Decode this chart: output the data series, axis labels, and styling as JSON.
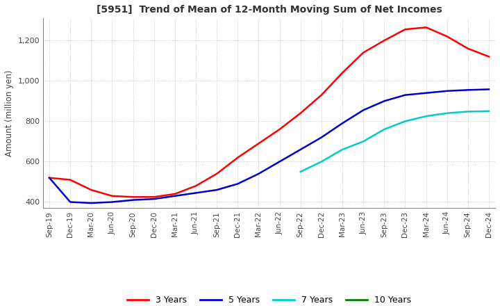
{
  "title": "[5951]  Trend of Mean of 12-Month Moving Sum of Net Incomes",
  "ylabel": "Amount (million yen)",
  "ylim": [
    370,
    1310
  ],
  "yticks": [
    400,
    600,
    800,
    1000,
    1200
  ],
  "background_color": "#ffffff",
  "grid_color": "#bbbbbb",
  "x_labels": [
    "Sep-19",
    "Dec-19",
    "Mar-20",
    "Jun-20",
    "Sep-20",
    "Dec-20",
    "Mar-21",
    "Jun-21",
    "Sep-21",
    "Dec-21",
    "Mar-22",
    "Jun-22",
    "Sep-22",
    "Dec-22",
    "Mar-23",
    "Jun-23",
    "Sep-23",
    "Dec-23",
    "Mar-24",
    "Jun-24",
    "Sep-24",
    "Dec-24"
  ],
  "series": {
    "3 Years": {
      "color": "#ff0000",
      "values": [
        520,
        510,
        460,
        430,
        425,
        425,
        440,
        480,
        540,
        620,
        690,
        760,
        840,
        930,
        1040,
        1140,
        1200,
        1255,
        1265,
        1220,
        1160,
        1120
      ]
    },
    "5 Years": {
      "color": "#0000cc",
      "values": [
        520,
        400,
        395,
        400,
        410,
        415,
        430,
        445,
        460,
        490,
        540,
        600,
        660,
        720,
        790,
        855,
        900,
        930,
        940,
        950,
        955,
        958
      ]
    },
    "7 Years": {
      "color": "#00cccc",
      "values": [
        null,
        null,
        null,
        null,
        null,
        null,
        null,
        null,
        null,
        null,
        null,
        null,
        550,
        600,
        660,
        700,
        760,
        800,
        825,
        840,
        848,
        850
      ]
    },
    "10 Years": {
      "color": "#008000",
      "values": [
        null,
        null,
        null,
        null,
        null,
        null,
        null,
        null,
        null,
        null,
        null,
        null,
        null,
        null,
        null,
        null,
        null,
        null,
        null,
        null,
        null,
        null
      ]
    }
  },
  "legend": {
    "3 Years": "#ff0000",
    "5 Years": "#0000cc",
    "7 Years": "#00cccc",
    "10 Years": "#008000"
  }
}
